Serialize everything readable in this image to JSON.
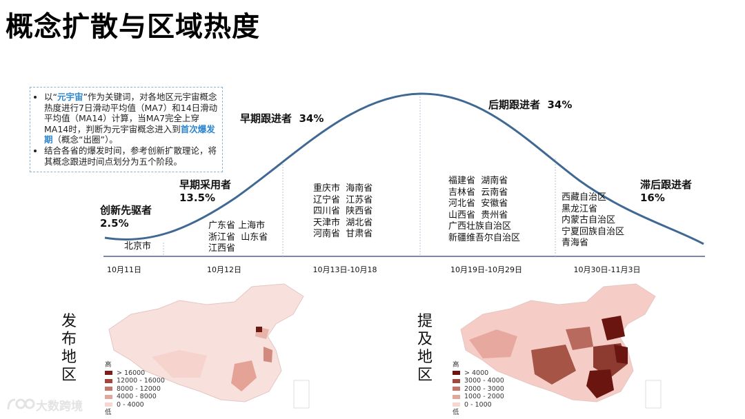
{
  "page_title": "概念扩散与区域热度",
  "note": {
    "bullet1_pre": "以“",
    "bullet1_keyword": "元宇宙",
    "bullet1_mid": "”作为关键词，对各地区元宇宙概念热度进行7日滑动平均值（MA7）和14日滑动平均值（MA14）计算，当MA7完全上穿MA14时，判断为元宇宙概念进入到",
    "bullet1_highlight": "首次爆发期",
    "bullet1_post": "（概念“出圈”）。",
    "bullet2": "结合各省的爆发时间，参考创新扩散理论，将其概念跟进时间点划分为五个阶段。"
  },
  "stages": [
    {
      "name": "创新先驱者",
      "pct": "2.5%",
      "date": "10月11日",
      "regions": [
        "北京市"
      ]
    },
    {
      "name": "早期采用者",
      "pct": "13.5%",
      "date": "10月12日",
      "regions": [
        "广东省 上海市",
        "浙江省  山东省",
        "江西省"
      ]
    },
    {
      "name": "早期跟进者",
      "pct": "34%",
      "date": "10月13日-10月18",
      "regions": [
        "重庆市  海南省",
        "辽宁省  江苏省",
        "四川省  陕西省",
        "天津市  湖北省",
        "河南省  甘肃省"
      ]
    },
    {
      "name": "后期跟进者",
      "pct": "34%",
      "date": "10月19日-10月29日",
      "regions": [
        "福建省  湖南省",
        "吉林省  云南省",
        "河北省  安徽省",
        "山西省  贵州省",
        "广西壮族自治区",
        "新疆维吾尔自治区"
      ]
    },
    {
      "name": "滞后跟进者",
      "pct": "16%",
      "date": "10月30日-11月3日",
      "regions": [
        "西藏自治区",
        "黑龙江省",
        "内蒙古自治区",
        "宁夏回族自治区",
        "青海省"
      ]
    }
  ],
  "map_left": {
    "label": "发布地区",
    "legend_high": "高",
    "legend_low": "低",
    "legend_items": [
      {
        "label": "> 16000",
        "color": "#7a1f1a"
      },
      {
        "label": "12000 - 16000",
        "color": "#a2463d"
      },
      {
        "label": "8000 - 12000",
        "color": "#c7756a"
      },
      {
        "label": "4000 - 8000",
        "color": "#e3a69c"
      },
      {
        "label": "0 - 4000",
        "color": "#f6d7d1"
      }
    ]
  },
  "map_right": {
    "label": "提及地区",
    "legend_high": "高",
    "legend_low": "低",
    "legend_items": [
      {
        "label": "> 4000",
        "color": "#6a1510"
      },
      {
        "label": "3000 - 4000",
        "color": "#9e4a3e"
      },
      {
        "label": "2000 - 3000",
        "color": "#c7756a"
      },
      {
        "label": "1000 - 2000",
        "color": "#e3a69c"
      },
      {
        "label": "0 - 1000",
        "color": "#f6d7d1"
      }
    ]
  },
  "brand": "大数跨境",
  "colors": {
    "curve": "#3f6893",
    "baseline": "#7b86b0",
    "highlight": "#2e86d0",
    "divider": "#b8c2d6"
  }
}
